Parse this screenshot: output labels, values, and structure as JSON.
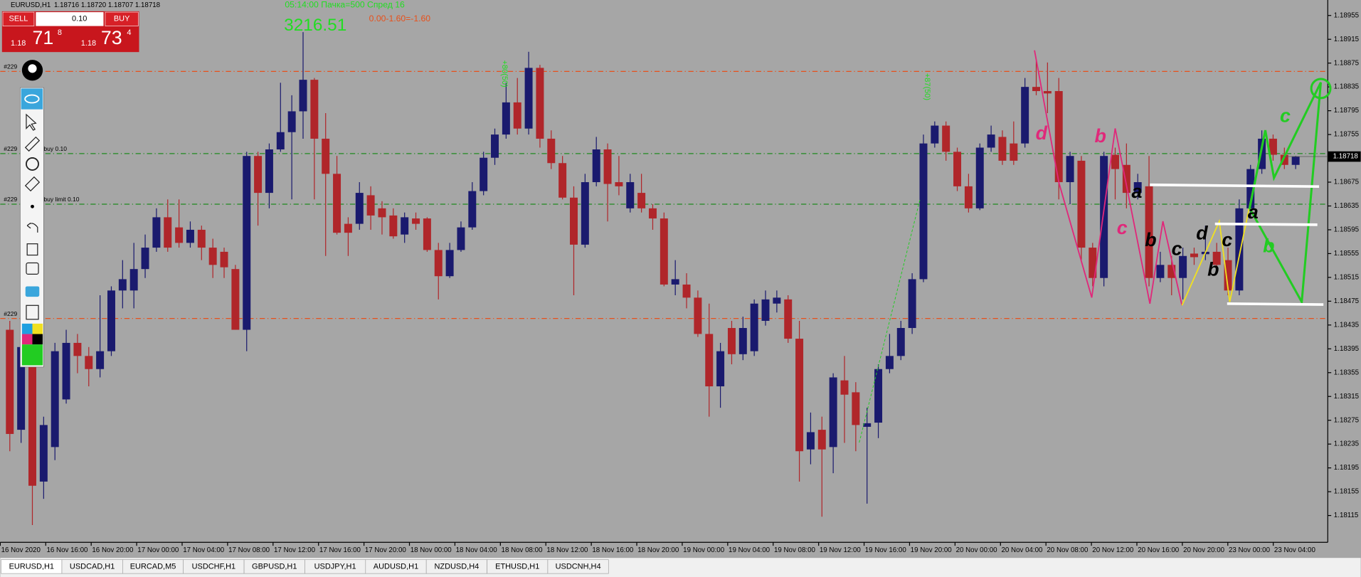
{
  "chart_data": {
    "type": "candlestick",
    "title": "EURUSD,H1",
    "quote": "1.18716 1.18720 1.18707 1.18718",
    "ylim": [
      1.1807,
      1.18981
    ],
    "yticks": [
      1.18955,
      1.18915,
      1.18875,
      1.18835,
      1.18795,
      1.18755,
      1.18675,
      1.18635,
      1.18595,
      1.18555,
      1.18515,
      1.18475,
      1.18435,
      1.18395,
      1.18355,
      1.18315,
      1.18275,
      1.18235,
      1.18195,
      1.18155,
      1.18115
    ],
    "current_price": 1.18718,
    "x_labels": [
      "16 Nov 2020",
      "16 Nov 16:00",
      "16 Nov 20:00",
      "17 Nov 00:00",
      "17 Nov 04:00",
      "17 Nov 08:00",
      "17 Nov 12:00",
      "17 Nov 16:00",
      "17 Nov 20:00",
      "18 Nov 00:00",
      "18 Nov 04:00",
      "18 Nov 08:00",
      "18 Nov 12:00",
      "18 Nov 16:00",
      "18 Nov 20:00",
      "19 Nov 00:00",
      "19 Nov 04:00",
      "19 Nov 08:00",
      "19 Nov 12:00",
      "19 Nov 16:00",
      "19 Nov 20:00",
      "20 Nov 00:00",
      "20 Nov 04:00",
      "20 Nov 08:00",
      "20 Nov 12:00",
      "20 Nov 16:00",
      "20 Nov 20:00",
      "23 Nov 00:00",
      "23 Nov 04:00"
    ],
    "up_color": "#1a1a6e",
    "down_color": "#b0262a",
    "ohlc": [
      [
        1.18427,
        1.18442,
        1.18223,
        1.18252
      ],
      [
        1.18259,
        1.1842,
        1.18237,
        1.18398
      ],
      [
        1.18398,
        1.18412,
        1.18099,
        1.18165
      ],
      [
        1.18172,
        1.18281,
        1.18143,
        1.18267
      ],
      [
        1.1823,
        1.18405,
        1.18208,
        1.18391
      ],
      [
        1.1831,
        1.18427,
        1.18303,
        1.18405
      ],
      [
        1.18405,
        1.1842,
        1.18354,
        1.18383
      ],
      [
        1.18383,
        1.18398,
        1.18332,
        1.18361
      ],
      [
        1.18361,
        1.18485,
        1.18347,
        1.18391
      ],
      [
        1.18391,
        1.185,
        1.18383,
        1.18493
      ],
      [
        1.18493,
        1.18544,
        1.18463,
        1.18512
      ],
      [
        1.18493,
        1.18573,
        1.18463,
        1.18529
      ],
      [
        1.18529,
        1.18587,
        1.18514,
        1.18565
      ],
      [
        1.18565,
        1.18631,
        1.18558,
        1.18616
      ],
      [
        1.18616,
        1.18646,
        1.18558,
        1.18565
      ],
      [
        1.18599,
        1.18646,
        1.18565,
        1.18573
      ],
      [
        1.18573,
        1.18609,
        1.18565,
        1.18595
      ],
      [
        1.18595,
        1.18602,
        1.18544,
        1.18565
      ],
      [
        1.18565,
        1.1858,
        1.18514,
        1.18536
      ],
      [
        1.18558,
        1.18565,
        1.18514,
        1.18532
      ],
      [
        1.18529,
        1.18536,
        1.18427,
        1.18427
      ],
      [
        1.18427,
        1.18726,
        1.18391,
        1.18719
      ],
      [
        1.18719,
        1.18726,
        1.18602,
        1.18657
      ],
      [
        1.18657,
        1.1874,
        1.18631,
        1.1873
      ],
      [
        1.1873,
        1.18842,
        1.18726,
        1.18759
      ],
      [
        1.18759,
        1.18821,
        1.18646,
        1.18794
      ],
      [
        1.18794,
        1.18927,
        1.18748,
        1.18847
      ],
      [
        1.18847,
        1.1885,
        1.18646,
        1.18748
      ],
      [
        1.18748,
        1.18791,
        1.18551,
        1.18689
      ],
      [
        1.18689,
        1.18719,
        1.18587,
        1.1859
      ],
      [
        1.18605,
        1.18616,
        1.18551,
        1.1859
      ],
      [
        1.18605,
        1.18675,
        1.18595,
        1.18657
      ],
      [
        1.18653,
        1.18668,
        1.18595,
        1.18619
      ],
      [
        1.18631,
        1.18643,
        1.18587,
        1.18616
      ],
      [
        1.18619,
        1.18631,
        1.1858,
        1.18584
      ],
      [
        1.18587,
        1.18624,
        1.18573,
        1.18616
      ],
      [
        1.18614,
        1.18624,
        1.18595,
        1.18605
      ],
      [
        1.18614,
        1.18616,
        1.18558,
        1.18561
      ],
      [
        1.18561,
        1.18573,
        1.18478,
        1.18517
      ],
      [
        1.18517,
        1.18573,
        1.18514,
        1.18561
      ],
      [
        1.18561,
        1.18609,
        1.18558,
        1.18599
      ],
      [
        1.18599,
        1.18675,
        1.18595,
        1.1866
      ],
      [
        1.1866,
        1.18726,
        1.18653,
        1.18716
      ],
      [
        1.18716,
        1.18765,
        1.18704,
        1.18755
      ],
      [
        1.18755,
        1.18842,
        1.18748,
        1.18809
      ],
      [
        1.18809,
        1.1885,
        1.18755,
        1.18765
      ],
      [
        1.18765,
        1.18894,
        1.18755,
        1.18867
      ],
      [
        1.18867,
        1.18872,
        1.18733,
        1.18748
      ],
      [
        1.18748,
        1.18762,
        1.18697,
        1.18707
      ],
      [
        1.18707,
        1.18719,
        1.18646,
        1.18649
      ],
      [
        1.18649,
        1.18668,
        1.18485,
        1.1857
      ],
      [
        1.1857,
        1.18689,
        1.18565,
        1.18675
      ],
      [
        1.18675,
        1.18751,
        1.18668,
        1.1873
      ],
      [
        1.1873,
        1.1874,
        1.18609,
        1.18672
      ],
      [
        1.18675,
        1.18719,
        1.18653,
        1.18668
      ],
      [
        1.18631,
        1.18689,
        1.18624,
        1.18675
      ],
      [
        1.18657,
        1.18689,
        1.18624,
        1.18631
      ],
      [
        1.18631,
        1.18638,
        1.18595,
        1.18614
      ],
      [
        1.18614,
        1.18624,
        1.185,
        1.18503
      ],
      [
        1.18503,
        1.18544,
        1.18485,
        1.18512
      ],
      [
        1.18503,
        1.18522,
        1.18463,
        1.18481
      ],
      [
        1.18481,
        1.18493,
        1.18415,
        1.1842
      ],
      [
        1.1842,
        1.18471,
        1.18281,
        1.18332
      ],
      [
        1.18332,
        1.18405,
        1.18296,
        1.18391
      ],
      [
        1.1843,
        1.18442,
        1.18369,
        1.18386
      ],
      [
        1.18386,
        1.18449,
        1.18376,
        1.1843
      ],
      [
        1.18391,
        1.18478,
        1.18383,
        1.18471
      ],
      [
        1.18442,
        1.18493,
        1.18434,
        1.18478
      ],
      [
        1.18471,
        1.18493,
        1.18456,
        1.18481
      ],
      [
        1.18478,
        1.18485,
        1.18405,
        1.18412
      ],
      [
        1.18412,
        1.18442,
        1.18172,
        1.18223
      ],
      [
        1.18226,
        1.18288,
        1.18201,
        1.18255
      ],
      [
        1.18259,
        1.18281,
        1.18113,
        1.18226
      ],
      [
        1.1823,
        1.18354,
        1.18186,
        1.18347
      ],
      [
        1.18342,
        1.18383,
        1.18237,
        1.18318
      ],
      [
        1.18322,
        1.18339,
        1.18223,
        1.18267
      ],
      [
        1.18264,
        1.18296,
        1.18135,
        1.1827
      ],
      [
        1.18271,
        1.18369,
        1.18245,
        1.18361
      ],
      [
        1.18361,
        1.1842,
        1.18354,
        1.18383
      ],
      [
        1.18383,
        1.18442,
        1.18376,
        1.1843
      ],
      [
        1.1843,
        1.18522,
        1.1842,
        1.18512
      ],
      [
        1.18512,
        1.18755,
        1.18507,
        1.1874
      ],
      [
        1.1874,
        1.18777,
        1.18733,
        1.1877
      ],
      [
        1.1877,
        1.18777,
        1.18711,
        1.18726
      ],
      [
        1.18726,
        1.18733,
        1.1866,
        1.18668
      ],
      [
        1.18668,
        1.18689,
        1.18624,
        1.18631
      ],
      [
        1.18631,
        1.1874,
        1.18628,
        1.18733
      ],
      [
        1.18733,
        1.1877,
        1.18726,
        1.18755
      ],
      [
        1.18751,
        1.18762,
        1.18704,
        1.18711
      ],
      [
        1.1874,
        1.18777,
        1.18704,
        1.18711
      ],
      [
        1.1874,
        1.1885,
        1.18733,
        1.18835
      ],
      [
        1.18835,
        1.18879,
        1.18821,
        1.18828
      ],
      [
        1.18828,
        1.18876,
        1.18791,
        1.18824
      ],
      [
        1.18828,
        1.1885,
        1.18646,
        1.18675
      ],
      [
        1.18675,
        1.18726,
        1.18638,
        1.18719
      ],
      [
        1.18711,
        1.18719,
        1.18544,
        1.18565
      ],
      [
        1.18565,
        1.18573,
        1.185,
        1.18514
      ],
      [
        1.18514,
        1.18726,
        1.185,
        1.18719
      ],
      [
        1.18721,
        1.18733,
        1.18646,
        1.18697
      ],
      [
        1.18704,
        1.1874,
        1.18631,
        1.18657
      ],
      [
        1.18657,
        1.18689,
        1.18646,
        1.18675
      ],
      [
        1.18668,
        1.18719,
        1.185,
        1.18514
      ],
      [
        1.18514,
        1.18558,
        1.18507,
        1.18536
      ],
      [
        1.18536,
        1.18551,
        1.18485,
        1.18514
      ],
      [
        1.18514,
        1.18565,
        1.18478,
        1.18551
      ],
      [
        1.18555,
        1.18565,
        1.18536,
        1.18549
      ],
      [
        1.18554,
        1.18602,
        1.18544,
        1.18558
      ],
      [
        1.18558,
        1.18573,
        1.18529,
        1.18536
      ],
      [
        1.18544,
        1.18565,
        1.18485,
        1.18493
      ],
      [
        1.18493,
        1.18646,
        1.18485,
        1.18631
      ],
      [
        1.18631,
        1.18704,
        1.18616,
        1.18697
      ],
      [
        1.18697,
        1.18762,
        1.18689,
        1.18748
      ],
      [
        1.18748,
        1.18755,
        1.18711,
        1.18721
      ],
      [
        1.18721,
        1.18733,
        1.18697,
        1.18704
      ],
      [
        1.18704,
        1.18719,
        1.18697,
        1.18718
      ]
    ],
    "levels": [
      {
        "value": 1.18861,
        "color": "#e8501a",
        "tag": "#229"
      },
      {
        "value": 1.18723,
        "color": "#1f8a1f",
        "tag": "#229",
        "text": "buy 0.10"
      },
      {
        "value": 1.18638,
        "color": "#1f8a1f",
        "tag": "#229",
        "text": "buy limit 0.10"
      },
      {
        "value": 1.18446,
        "color": "#e8501a",
        "tag": "#229"
      }
    ],
    "info": {
      "line": "05:14:00 Пачка=500 Спред 16",
      "balance": "3216.51",
      "calc": "0.00-1.60=-1.60"
    },
    "vertical_notes": [
      "+80(50)",
      "+87(50)"
    ],
    "handwriting": [
      {
        "text": "d",
        "color": "#e0287a"
      },
      {
        "text": "b",
        "color": "#e0287a"
      },
      {
        "text": "c",
        "color": "#e0287a"
      },
      {
        "text": "a",
        "color": "#000"
      },
      {
        "text": "b",
        "color": "#000"
      },
      {
        "text": "c",
        "color": "#000"
      },
      {
        "text": "d",
        "color": "#000"
      },
      {
        "text": "b",
        "color": "#000"
      },
      {
        "text": "c",
        "color": "#000"
      },
      {
        "text": "a",
        "color": "#000"
      },
      {
        "text": "c",
        "color": "#22cc22"
      },
      {
        "text": "b",
        "color": "#22cc22"
      }
    ]
  },
  "trade_panel": {
    "sell": "SELL",
    "buy": "BUY",
    "lot": "0.10",
    "bid": {
      "big": "1.18",
      "pips": "71",
      "frac": "8"
    },
    "ask": {
      "big": "1.18",
      "pips": "73",
      "frac": "4"
    }
  },
  "tabs": [
    "EURUSD,H1",
    "USDCAD,H1",
    "EURCAD,M5",
    "USDCHF,H1",
    "GBPUSD,H1",
    "USDJPY,H1",
    "AUDUSD,H1",
    "NZDUSD,H4",
    "ETHUSD,H1",
    "USDCNH,H4"
  ]
}
